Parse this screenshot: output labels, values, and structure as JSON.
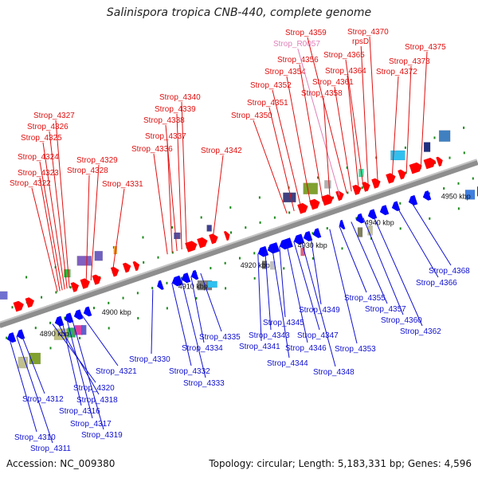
{
  "title": "Salinispora tropica CNB-440, complete genome",
  "footer": {
    "accession": "Accession: NC_009380",
    "topology": "Topology: circular; Length: 5,183,331 bp; Genes: 4,596"
  },
  "colors": {
    "forward_label": "#e01010",
    "reverse_label": "#1010d0",
    "rna_label": "#e080b8",
    "backbone": "#8e8e8e",
    "forward_gene": "#ff0000",
    "reverse_gene": "#0000ff"
  },
  "scale_labels": [
    "4890 kbp",
    "4900 kbp",
    "4910 kbp",
    "4920 kbp",
    "4930 kbp",
    "4940 kbp",
    "4950 kbp"
  ],
  "top_labels": [
    "Strop_4322",
    "Strop_4323",
    "Strop_4324",
    "Strop_4325",
    "Strop_4326",
    "Strop_4327",
    "Strop_4328",
    "Strop_4329",
    "Strop_4331",
    "Strop_4336",
    "Strop_4337",
    "Strop_4338",
    "Strop_4339",
    "Strop_4340",
    "Strop_4342",
    "Strop_4350",
    "Strop_4351",
    "Strop_4352",
    "Strop_4354",
    "Strop_4356",
    "Strop_R0057",
    "Strop_4359",
    "Strop_4358",
    "Strop_4361",
    "Strop_4364",
    "Strop_4365",
    "rpsD",
    "Strop_4370",
    "Strop_4372",
    "Strop_4373",
    "Strop_4375"
  ],
  "bottom_labels": [
    "Strop_4310",
    "Strop_4311",
    "Strop_4312",
    "Strop_4316",
    "Strop_4317",
    "Strop_4318",
    "Strop_4319",
    "Strop_4320",
    "Strop_4321",
    "Strop_4330",
    "Strop_4332",
    "Strop_4333",
    "Strop_4334",
    "Strop_4335",
    "Strop_4341",
    "Strop_4343",
    "Strop_4344",
    "Strop_4345",
    "Strop_4346",
    "Strop_4347",
    "Strop_4348",
    "Strop_4349",
    "Strop_4353",
    "Strop_4355",
    "Strop_4357",
    "Strop_4360",
    "Strop_4362",
    "Strop_4366",
    "Strop_4368"
  ]
}
